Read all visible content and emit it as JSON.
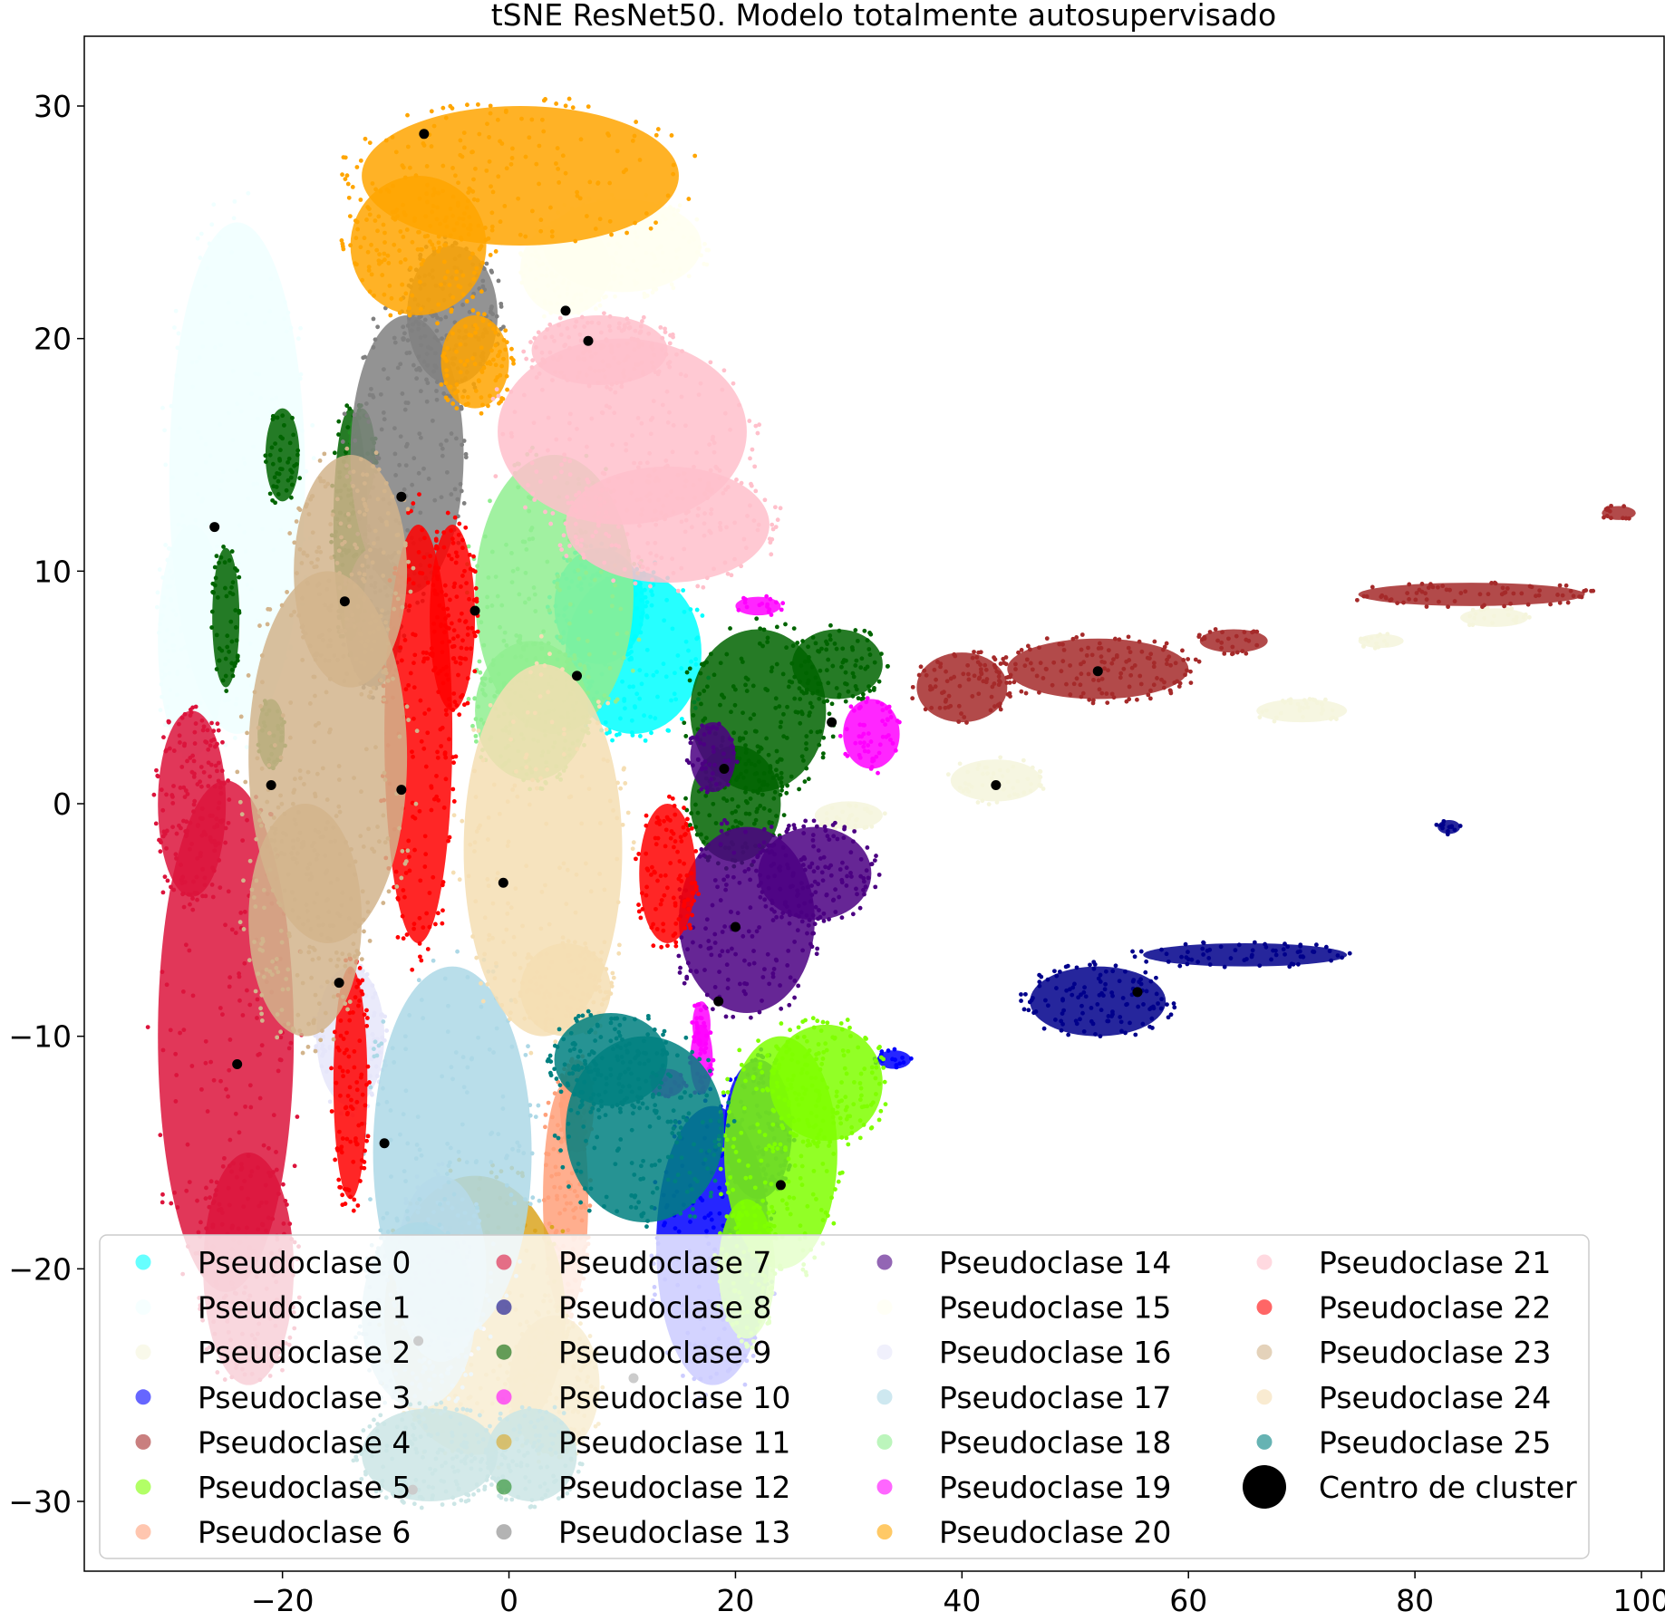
{
  "chart_data": {
    "type": "scatter",
    "title": "tSNE ResNet50. Modelo totalmente autosupervisado",
    "xlabel": "",
    "ylabel": "",
    "xlim": [
      -37.5,
      102
    ],
    "ylim": [
      -33,
      33
    ],
    "xticks": [
      -20,
      0,
      20,
      40,
      60,
      80,
      100
    ],
    "yticks": [
      -30,
      -20,
      -10,
      0,
      10,
      20,
      30
    ],
    "xtick_labels": [
      "−20",
      "0",
      "20",
      "40",
      "60",
      "80",
      "100"
    ],
    "ytick_labels": [
      "−30",
      "−20",
      "−10",
      "0",
      "10",
      "20",
      "30"
    ],
    "grid": false,
    "legend_position": "lower-center",
    "series": [
      {
        "name": "Pseudoclase 0",
        "color": "#00ffff",
        "regions": [
          {
            "cx": 11,
            "cy": 6.5,
            "rx": 6,
            "ry": 3.5
          },
          {
            "cx": 8,
            "cy": 8.5,
            "rx": 4,
            "ry": 2.5
          }
        ]
      },
      {
        "name": "Pseudoclase 1",
        "color": "#f0ffff",
        "regions": [
          {
            "cx": -24,
            "cy": 14,
            "rx": 6,
            "ry": 11
          },
          {
            "cx": -28,
            "cy": 7,
            "rx": 3,
            "ry": 5
          }
        ]
      },
      {
        "name": "Pseudoclase 2",
        "color": "#f5f5dc",
        "regions": [
          {
            "cx": 43,
            "cy": 1,
            "rx": 4,
            "ry": 0.9
          },
          {
            "cx": 70,
            "cy": 4,
            "rx": 4,
            "ry": 0.5
          },
          {
            "cx": 87,
            "cy": 8,
            "rx": 3,
            "ry": 0.4
          },
          {
            "cx": 77,
            "cy": 7,
            "rx": 2,
            "ry": 0.3
          },
          {
            "cx": 30,
            "cy": -0.5,
            "rx": 3,
            "ry": 0.6
          }
        ]
      },
      {
        "name": "Pseudoclase 3",
        "color": "#0000ff",
        "regions": [
          {
            "cx": 18,
            "cy": -19,
            "rx": 5,
            "ry": 6
          },
          {
            "cx": 22,
            "cy": -14,
            "rx": 3,
            "ry": 3
          },
          {
            "cx": 34,
            "cy": -11,
            "rx": 1.5,
            "ry": 0.4
          }
        ]
      },
      {
        "name": "Pseudoclase 4",
        "color": "#a52a2a",
        "regions": [
          {
            "cx": 52,
            "cy": 5.8,
            "rx": 8,
            "ry": 1.3
          },
          {
            "cx": 40,
            "cy": 5,
            "rx": 4,
            "ry": 1.5
          },
          {
            "cx": 85,
            "cy": 9,
            "rx": 10,
            "ry": 0.5
          },
          {
            "cx": 64,
            "cy": 7,
            "rx": 3,
            "ry": 0.5
          },
          {
            "cx": 98,
            "cy": 12.5,
            "rx": 1.5,
            "ry": 0.3
          }
        ]
      },
      {
        "name": "Pseudoclase 5",
        "color": "#7fff00",
        "regions": [
          {
            "cx": 24,
            "cy": -15,
            "rx": 5,
            "ry": 5
          },
          {
            "cx": 28,
            "cy": -12,
            "rx": 5,
            "ry": 2.5
          },
          {
            "cx": 21,
            "cy": -20,
            "rx": 2.5,
            "ry": 3
          }
        ]
      },
      {
        "name": "Pseudoclase 6",
        "color": "#ffa07a",
        "regions": [
          {
            "cx": 5,
            "cy": -17,
            "rx": 2,
            "ry": 5
          },
          {
            "cx": 6,
            "cy": -13,
            "rx": 1.5,
            "ry": 2
          }
        ]
      },
      {
        "name": "Pseudoclase 7",
        "color": "#dc143c",
        "regions": [
          {
            "cx": -25,
            "cy": -10,
            "rx": 6,
            "ry": 11
          },
          {
            "cx": -28,
            "cy": 0,
            "rx": 3,
            "ry": 4
          },
          {
            "cx": -23,
            "cy": -20,
            "rx": 4,
            "ry": 5
          }
        ]
      },
      {
        "name": "Pseudoclase 8",
        "color": "#00008b",
        "regions": [
          {
            "cx": 52,
            "cy": -8.5,
            "rx": 6,
            "ry": 1.5
          },
          {
            "cx": 65,
            "cy": -6.5,
            "rx": 9,
            "ry": 0.5
          },
          {
            "cx": 83,
            "cy": -1,
            "rx": 1,
            "ry": 0.3
          }
        ]
      },
      {
        "name": "Pseudoclase 9",
        "color": "#006400",
        "regions": [
          {
            "cx": 22,
            "cy": 4,
            "rx": 6,
            "ry": 3.5
          },
          {
            "cx": 20,
            "cy": 0,
            "rx": 4,
            "ry": 2.5
          },
          {
            "cx": 29,
            "cy": 6,
            "rx": 4,
            "ry": 1.5
          },
          {
            "cx": -14,
            "cy": 12,
            "rx": 1.5,
            "ry": 5
          },
          {
            "cx": -25,
            "cy": 8,
            "rx": 1.2,
            "ry": 3
          },
          {
            "cx": -20,
            "cy": 15,
            "rx": 1.5,
            "ry": 2
          }
        ]
      },
      {
        "name": "Pseudoclase 10",
        "color": "#ff00ff",
        "regions": [
          {
            "cx": 32,
            "cy": 3,
            "rx": 2.5,
            "ry": 1.5
          },
          {
            "cx": 22,
            "cy": 8.5,
            "rx": 2,
            "ry": 0.4
          },
          {
            "cx": 17,
            "cy": -11,
            "rx": 1,
            "ry": 1.5
          }
        ]
      },
      {
        "name": "Pseudoclase 11",
        "color": "#daa520",
        "regions": [
          {
            "cx": -3,
            "cy": -22,
            "rx": 8,
            "ry": 6
          },
          {
            "cx": 4,
            "cy": -25,
            "rx": 4,
            "ry": 3
          }
        ]
      },
      {
        "name": "Pseudoclase 12",
        "color": "#228b22",
        "regions": [
          {
            "cx": -13,
            "cy": 15,
            "rx": 1.2,
            "ry": 2
          },
          {
            "cx": -21,
            "cy": 3,
            "rx": 1.2,
            "ry": 1.5
          }
        ]
      },
      {
        "name": "Pseudoclase 13",
        "color": "#808080",
        "regions": [
          {
            "cx": -9,
            "cy": 15,
            "rx": 5,
            "ry": 6
          },
          {
            "cx": -5,
            "cy": 21,
            "rx": 4,
            "ry": 3
          },
          {
            "cx": -12,
            "cy": 8,
            "rx": 2.5,
            "ry": 3
          }
        ]
      },
      {
        "name": "Pseudoclase 14",
        "color": "#4b0082",
        "regions": [
          {
            "cx": 21,
            "cy": -5,
            "rx": 6,
            "ry": 4
          },
          {
            "cx": 27,
            "cy": -3,
            "rx": 5,
            "ry": 2
          },
          {
            "cx": 18,
            "cy": 2,
            "rx": 2,
            "ry": 1.5
          }
        ]
      },
      {
        "name": "Pseudoclase 15",
        "color": "#fffff0",
        "regions": [
          {
            "cx": 10,
            "cy": 24,
            "rx": 7,
            "ry": 2
          },
          {
            "cx": 5,
            "cy": 23,
            "rx": 4,
            "ry": 2
          }
        ]
      },
      {
        "name": "Pseudoclase 16",
        "color": "#e6e6fa",
        "regions": [
          {
            "cx": -14,
            "cy": -10,
            "rx": 3,
            "ry": 3
          },
          {
            "cx": -6,
            "cy": -20,
            "rx": 4,
            "ry": 4
          }
        ]
      },
      {
        "name": "Pseudoclase 17",
        "color": "#add8e6",
        "regions": [
          {
            "cx": -5,
            "cy": -15,
            "rx": 7,
            "ry": 8
          },
          {
            "cx": -8,
            "cy": -22,
            "rx": 5,
            "ry": 4
          }
        ]
      },
      {
        "name": "Pseudoclase 18",
        "color": "#90ee90",
        "regions": [
          {
            "cx": 4,
            "cy": 9,
            "rx": 7,
            "ry": 6
          },
          {
            "cx": 2,
            "cy": 4,
            "rx": 5,
            "ry": 3
          }
        ]
      },
      {
        "name": "Pseudoclase 19",
        "color": "#ff00ff",
        "regions": [
          {
            "cx": 17,
            "cy": -9.5,
            "rx": 0.8,
            "ry": 1
          },
          {
            "cx": 14,
            "cy": -12,
            "rx": 1.5,
            "ry": 0.6
          }
        ]
      },
      {
        "name": "Pseudoclase 20",
        "color": "#ffa500",
        "regions": [
          {
            "cx": 1,
            "cy": 27,
            "rx": 14,
            "ry": 3
          },
          {
            "cx": -8,
            "cy": 24,
            "rx": 6,
            "ry": 3
          },
          {
            "cx": -3,
            "cy": 19,
            "rx": 3,
            "ry": 2
          }
        ]
      },
      {
        "name": "Pseudoclase 21",
        "color": "#ffc0cb",
        "regions": [
          {
            "cx": 10,
            "cy": 16,
            "rx": 11,
            "ry": 4
          },
          {
            "cx": 14,
            "cy": 12,
            "rx": 9,
            "ry": 2.5
          },
          {
            "cx": 8,
            "cy": 19.5,
            "rx": 6,
            "ry": 1.5
          }
        ]
      },
      {
        "name": "Pseudoclase 22",
        "color": "#ff0000",
        "regions": [
          {
            "cx": -8,
            "cy": 3,
            "rx": 3,
            "ry": 9
          },
          {
            "cx": -5,
            "cy": 8,
            "rx": 2,
            "ry": 4
          },
          {
            "cx": -14,
            "cy": -12,
            "rx": 1.5,
            "ry": 5
          },
          {
            "cx": 14,
            "cy": -3,
            "rx": 2.5,
            "ry": 3
          }
        ]
      },
      {
        "name": "Pseudoclase 23",
        "color": "#d2b48c",
        "regions": [
          {
            "cx": -16,
            "cy": 2,
            "rx": 7,
            "ry": 8
          },
          {
            "cx": -14,
            "cy": 10,
            "rx": 5,
            "ry": 5
          },
          {
            "cx": -18,
            "cy": -5,
            "rx": 5,
            "ry": 5
          }
        ]
      },
      {
        "name": "Pseudoclase 24",
        "color": "#f5deb3",
        "regions": [
          {
            "cx": 3,
            "cy": -2,
            "rx": 7,
            "ry": 8
          },
          {
            "cx": 5,
            "cy": -8,
            "rx": 4,
            "ry": 2
          }
        ]
      },
      {
        "name": "Pseudoclase 25",
        "color": "#008080",
        "regions": [
          {
            "cx": 12,
            "cy": -14,
            "rx": 7,
            "ry": 4
          },
          {
            "cx": 9,
            "cy": -11,
            "rx": 5,
            "ry": 2
          },
          {
            "cx": -7,
            "cy": -28,
            "rx": 6,
            "ry": 2
          },
          {
            "cx": 2,
            "cy": -28,
            "rx": 4,
            "ry": 2
          }
        ]
      }
    ],
    "centers": {
      "name": "Centro de cluster",
      "color": "#000000",
      "points": [
        [
          -7.5,
          28.8
        ],
        [
          5,
          21.2
        ],
        [
          7,
          19.9
        ],
        [
          -26,
          11.9
        ],
        [
          -9.5,
          13.2
        ],
        [
          -14.5,
          8.7
        ],
        [
          -3,
          8.3
        ],
        [
          6,
          5.5
        ],
        [
          52,
          5.7
        ],
        [
          28.5,
          3.5
        ],
        [
          19,
          1.5
        ],
        [
          -21,
          0.8
        ],
        [
          -9.5,
          0.6
        ],
        [
          43,
          0.8
        ],
        [
          -0.5,
          -3.4
        ],
        [
          20,
          -5.3
        ],
        [
          -15,
          -7.7
        ],
        [
          18.5,
          -8.5
        ],
        [
          55.5,
          -8.1
        ],
        [
          -24,
          -11.2
        ],
        [
          -11,
          -14.6
        ],
        [
          24,
          -16.4
        ],
        [
          -8,
          -23.1
        ],
        [
          11,
          -24.7
        ],
        [
          -8.5,
          -29.5
        ]
      ]
    }
  }
}
